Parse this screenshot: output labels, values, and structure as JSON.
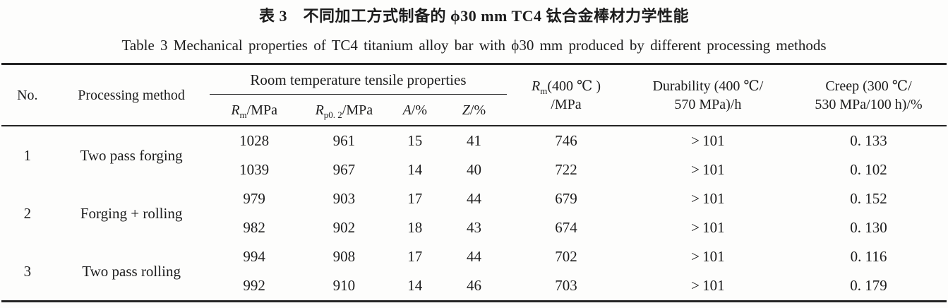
{
  "titles": {
    "chinese": "表 3　不同加工方式制备的 ϕ30 mm TC4 钛合金棒材力学性能",
    "english": "Table 3   Mechanical properties of TC4 titanium alloy bar with ϕ30 mm produced by different processing methods"
  },
  "table": {
    "headers": {
      "no": "No.",
      "processing_method": "Processing method",
      "room_temp_group": "Room temperature tensile properties",
      "rm": {
        "symbol": "R",
        "subscript": "m",
        "suffix": "/MPa"
      },
      "rp02": {
        "symbol": "R",
        "subscript": "p0. 2",
        "suffix": "/MPa"
      },
      "a": {
        "symbol": "A",
        "suffix": "/%"
      },
      "z": {
        "symbol": "Z",
        "suffix": "/%"
      },
      "rm400": {
        "symbol": "R",
        "subscript": "m",
        "suffix": "(400 ℃ )",
        "line2": "/MPa"
      },
      "durability": {
        "line1": "Durability (400 ℃/",
        "line2": "570 MPa)/h"
      },
      "creep": {
        "line1": "Creep (300 ℃/",
        "line2": "530 MPa/100 h)/%"
      }
    },
    "groups": [
      {
        "no": "1",
        "method": "Two pass forging",
        "rows": [
          [
            "1028",
            "961",
            "15",
            "41",
            "746",
            "> 101",
            "0. 133"
          ],
          [
            "1039",
            "967",
            "14",
            "40",
            "722",
            "> 101",
            "0. 102"
          ]
        ]
      },
      {
        "no": "2",
        "method": "Forging + rolling",
        "rows": [
          [
            "979",
            "903",
            "17",
            "44",
            "679",
            "> 101",
            "0. 152"
          ],
          [
            "982",
            "902",
            "18",
            "43",
            "674",
            "> 101",
            "0. 130"
          ]
        ]
      },
      {
        "no": "3",
        "method": "Two pass rolling",
        "rows": [
          [
            "994",
            "908",
            "17",
            "44",
            "702",
            "> 101",
            "0. 116"
          ],
          [
            "992",
            "910",
            "14",
            "46",
            "703",
            "> 101",
            "0. 179"
          ]
        ]
      }
    ]
  }
}
